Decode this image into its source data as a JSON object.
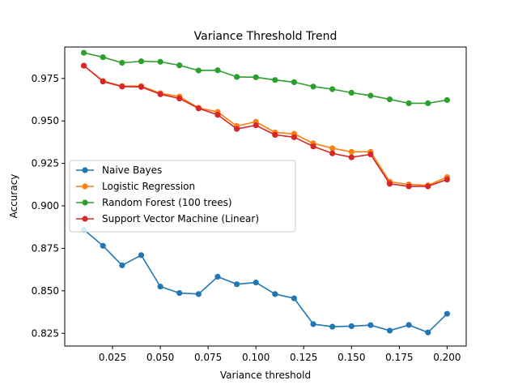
{
  "chart_data": {
    "type": "line",
    "title": "Variance Threshold Trend",
    "xlabel": "Variance threshold",
    "ylabel": "Accuracy",
    "xlim": [
      -0.0,
      0.21
    ],
    "ylim": [
      0.8175,
      0.9935
    ],
    "xticks": [
      0.025,
      0.05,
      0.075,
      0.1,
      0.125,
      0.15,
      0.175,
      0.2
    ],
    "xtick_labels": [
      "0.025",
      "0.050",
      "0.075",
      "0.100",
      "0.125",
      "0.150",
      "0.175",
      "0.200"
    ],
    "yticks": [
      0.825,
      0.85,
      0.875,
      0.9,
      0.925,
      0.95,
      0.975
    ],
    "ytick_labels": [
      "0.825",
      "0.850",
      "0.875",
      "0.900",
      "0.925",
      "0.950",
      "0.975"
    ],
    "grid": false,
    "legend_position": "center-left",
    "x": [
      0.01,
      0.02,
      0.03,
      0.04,
      0.05,
      0.06,
      0.07,
      0.08,
      0.09,
      0.1,
      0.11,
      0.12,
      0.13,
      0.14,
      0.15,
      0.16,
      0.17,
      0.18,
      0.19,
      0.2
    ],
    "series": [
      {
        "name": "Naive Bayes",
        "color": "#1f77b4",
        "values": [
          0.886,
          0.8765,
          0.865,
          0.871,
          0.8525,
          0.8487,
          0.8481,
          0.8583,
          0.8539,
          0.8549,
          0.8481,
          0.8456,
          0.8304,
          0.8289,
          0.8292,
          0.8298,
          0.8266,
          0.8299,
          0.8255,
          0.8365
        ]
      },
      {
        "name": "Logistic Regression",
        "color": "#ff7f0e",
        "values": [
          0.9825,
          0.9735,
          0.9705,
          0.9705,
          0.9663,
          0.9643,
          0.9577,
          0.9553,
          0.947,
          0.9495,
          0.9432,
          0.9424,
          0.9368,
          0.9339,
          0.9318,
          0.9318,
          0.9142,
          0.9126,
          0.9121,
          0.9169
        ]
      },
      {
        "name": "Random Forest (100 trees)",
        "color": "#2ca02c",
        "values": [
          0.9901,
          0.9875,
          0.9842,
          0.9851,
          0.9848,
          0.9827,
          0.9797,
          0.9798,
          0.9759,
          0.9757,
          0.9741,
          0.9728,
          0.9702,
          0.9687,
          0.9666,
          0.9649,
          0.9627,
          0.9604,
          0.9604,
          0.9623
        ]
      },
      {
        "name": "Support Vector Machine (Linear)",
        "color": "#d62728",
        "values": [
          0.9825,
          0.9732,
          0.9702,
          0.97,
          0.9657,
          0.9632,
          0.9574,
          0.9536,
          0.9453,
          0.9474,
          0.9418,
          0.9404,
          0.935,
          0.9309,
          0.9286,
          0.9303,
          0.913,
          0.9115,
          0.9115,
          0.9155
        ]
      }
    ]
  }
}
